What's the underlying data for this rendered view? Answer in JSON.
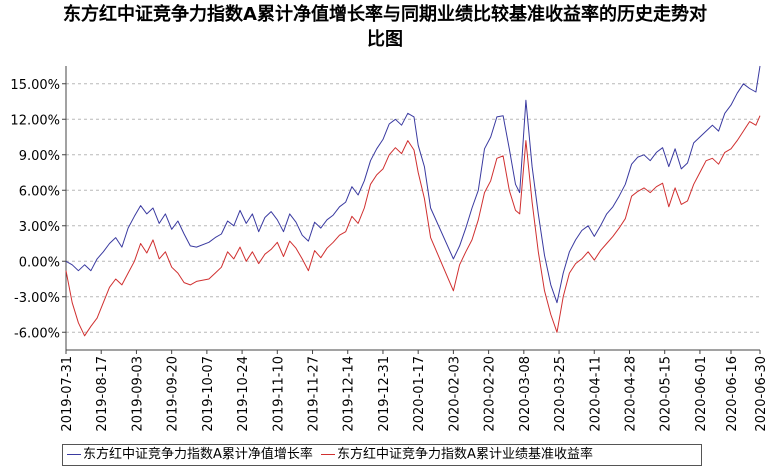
{
  "chart_data": {
    "type": "line",
    "title_line1": "东方红中证竞争力指数A累计净值增长率与同期业绩比较基准收益率的历史走势对",
    "title_line2": "比图",
    "ylim": [
      -7.5,
      16.5
    ],
    "yticks": [
      15,
      12,
      9,
      6,
      3,
      0,
      -3,
      -6
    ],
    "ytick_labels": [
      "15.00%",
      "12.00%",
      "9.00%",
      "6.00%",
      "3.00%",
      "0.00%",
      "-3.00%",
      "-6.00%"
    ],
    "grid": true,
    "legend_position": "bottom",
    "xlim": [
      "2019-07-31",
      "2020-06-30"
    ],
    "x_tick_labels": [
      "2019-07-31",
      "2019-08-17",
      "2019-09-03",
      "2019-09-20",
      "2019-10-07",
      "2019-10-24",
      "2019-11-10",
      "2019-11-27",
      "2019-12-14",
      "2019-12-31",
      "2020-01-17",
      "2020-02-03",
      "2020-02-20",
      "2020-03-08",
      "2020-03-25",
      "2020-04-11",
      "2020-04-28",
      "2020-05-15",
      "2020-06-01",
      "2020-06-16",
      "2020-06-30"
    ],
    "series": [
      {
        "name": "东方红中证竞争力指数A累计净值增长率",
        "color": "#3a3aa0",
        "x": [
          "2019-07-31",
          "2019-08-03",
          "2019-08-06",
          "2019-08-09",
          "2019-08-12",
          "2019-08-15",
          "2019-08-18",
          "2019-08-21",
          "2019-08-24",
          "2019-08-27",
          "2019-08-30",
          "2019-09-02",
          "2019-09-05",
          "2019-09-08",
          "2019-09-11",
          "2019-09-14",
          "2019-09-17",
          "2019-09-20",
          "2019-09-23",
          "2019-09-26",
          "2019-09-29",
          "2019-10-02",
          "2019-10-08",
          "2019-10-11",
          "2019-10-14",
          "2019-10-17",
          "2019-10-20",
          "2019-10-23",
          "2019-10-26",
          "2019-10-29",
          "2019-11-01",
          "2019-11-04",
          "2019-11-07",
          "2019-11-10",
          "2019-11-13",
          "2019-11-16",
          "2019-11-19",
          "2019-11-22",
          "2019-11-25",
          "2019-11-28",
          "2019-12-01",
          "2019-12-04",
          "2019-12-07",
          "2019-12-10",
          "2019-12-13",
          "2019-12-16",
          "2019-12-19",
          "2019-12-22",
          "2019-12-25",
          "2019-12-28",
          "2019-12-31",
          "2020-01-03",
          "2020-01-06",
          "2020-01-09",
          "2020-01-12",
          "2020-01-15",
          "2020-01-17",
          "2020-01-20",
          "2020-01-23",
          "2020-02-03",
          "2020-02-06",
          "2020-02-09",
          "2020-02-12",
          "2020-02-15",
          "2020-02-18",
          "2020-02-21",
          "2020-02-24",
          "2020-02-27",
          "2020-03-01",
          "2020-03-04",
          "2020-03-06",
          "2020-03-09",
          "2020-03-12",
          "2020-03-15",
          "2020-03-18",
          "2020-03-21",
          "2020-03-24",
          "2020-03-27",
          "2020-03-30",
          "2020-04-02",
          "2020-04-05",
          "2020-04-08",
          "2020-04-11",
          "2020-04-14",
          "2020-04-17",
          "2020-04-20",
          "2020-04-23",
          "2020-04-26",
          "2020-04-29",
          "2020-05-02",
          "2020-05-05",
          "2020-05-08",
          "2020-05-11",
          "2020-05-14",
          "2020-05-17",
          "2020-05-20",
          "2020-05-23",
          "2020-05-26",
          "2020-05-29",
          "2020-06-01",
          "2020-06-04",
          "2020-06-07",
          "2020-06-10",
          "2020-06-13",
          "2020-06-16",
          "2020-06-19",
          "2020-06-22",
          "2020-06-25",
          "2020-06-28",
          "2020-06-30"
        ],
        "y": [
          0.0,
          -0.3,
          -0.8,
          -0.3,
          -0.8,
          0.2,
          0.8,
          1.5,
          2.0,
          1.2,
          2.8,
          3.8,
          4.7,
          4.0,
          4.5,
          3.2,
          4.0,
          2.7,
          3.4,
          2.3,
          1.3,
          1.2,
          1.6,
          2.0,
          2.3,
          3.4,
          3.0,
          4.3,
          3.2,
          4.0,
          2.5,
          3.7,
          4.2,
          3.5,
          2.5,
          4.0,
          3.3,
          2.2,
          1.7,
          3.3,
          2.8,
          3.5,
          3.9,
          4.6,
          5.0,
          6.3,
          5.6,
          6.8,
          8.5,
          9.5,
          10.3,
          11.6,
          12.0,
          11.5,
          12.5,
          12.2,
          9.8,
          8.0,
          4.5,
          0.2,
          1.3,
          2.8,
          4.5,
          6.0,
          9.5,
          10.5,
          12.2,
          12.3,
          9.5,
          6.5,
          5.8,
          13.6,
          8.0,
          4.0,
          0.5,
          -2.0,
          -3.5,
          -1.0,
          0.8,
          1.8,
          2.6,
          3.0,
          2.1,
          3.0,
          4.0,
          4.6,
          5.5,
          6.5,
          8.2,
          8.8,
          9.0,
          8.5,
          9.2,
          9.6,
          8.0,
          9.5,
          7.8,
          8.3,
          10.0,
          10.5,
          11.0,
          11.5,
          11.0,
          12.5,
          13.2,
          14.2,
          15.0,
          14.6,
          14.3,
          16.5
        ]
      },
      {
        "name": "东方红中证竞争力指数A累计业绩基准收益率",
        "color": "#d03030",
        "x": [
          "2019-07-31",
          "2019-08-03",
          "2019-08-06",
          "2019-08-09",
          "2019-08-12",
          "2019-08-15",
          "2019-08-18",
          "2019-08-21",
          "2019-08-24",
          "2019-08-27",
          "2019-08-30",
          "2019-09-02",
          "2019-09-05",
          "2019-09-08",
          "2019-09-11",
          "2019-09-14",
          "2019-09-17",
          "2019-09-20",
          "2019-09-23",
          "2019-09-26",
          "2019-09-29",
          "2019-10-02",
          "2019-10-08",
          "2019-10-11",
          "2019-10-14",
          "2019-10-17",
          "2019-10-20",
          "2019-10-23",
          "2019-10-26",
          "2019-10-29",
          "2019-11-01",
          "2019-11-04",
          "2019-11-07",
          "2019-11-10",
          "2019-11-13",
          "2019-11-16",
          "2019-11-19",
          "2019-11-22",
          "2019-11-25",
          "2019-11-28",
          "2019-12-01",
          "2019-12-04",
          "2019-12-07",
          "2019-12-10",
          "2019-12-13",
          "2019-12-16",
          "2019-12-19",
          "2019-12-22",
          "2019-12-25",
          "2019-12-28",
          "2019-12-31",
          "2020-01-03",
          "2020-01-06",
          "2020-01-09",
          "2020-01-12",
          "2020-01-15",
          "2020-01-17",
          "2020-01-20",
          "2020-01-23",
          "2020-02-03",
          "2020-02-06",
          "2020-02-09",
          "2020-02-12",
          "2020-02-15",
          "2020-02-18",
          "2020-02-21",
          "2020-02-24",
          "2020-02-27",
          "2020-03-01",
          "2020-03-04",
          "2020-03-06",
          "2020-03-09",
          "2020-03-12",
          "2020-03-15",
          "2020-03-18",
          "2020-03-21",
          "2020-03-24",
          "2020-03-27",
          "2020-03-30",
          "2020-04-02",
          "2020-04-05",
          "2020-04-08",
          "2020-04-11",
          "2020-04-14",
          "2020-04-17",
          "2020-04-20",
          "2020-04-23",
          "2020-04-26",
          "2020-04-29",
          "2020-05-02",
          "2020-05-05",
          "2020-05-08",
          "2020-05-11",
          "2020-05-14",
          "2020-05-17",
          "2020-05-20",
          "2020-05-23",
          "2020-05-26",
          "2020-05-29",
          "2020-06-01",
          "2020-06-04",
          "2020-06-07",
          "2020-06-10",
          "2020-06-13",
          "2020-06-16",
          "2020-06-19",
          "2020-06-22",
          "2020-06-25",
          "2020-06-28",
          "2020-06-30"
        ],
        "y": [
          -0.8,
          -3.5,
          -5.2,
          -6.3,
          -5.5,
          -4.8,
          -3.5,
          -2.2,
          -1.5,
          -2.0,
          -1.0,
          0.0,
          1.5,
          0.7,
          1.8,
          0.2,
          0.8,
          -0.5,
          -1.0,
          -1.8,
          -2.0,
          -1.7,
          -1.5,
          -1.0,
          -0.5,
          0.8,
          0.2,
          1.2,
          0.0,
          0.8,
          -0.2,
          0.6,
          1.0,
          1.6,
          0.4,
          1.7,
          1.1,
          0.2,
          -0.8,
          0.9,
          0.3,
          1.1,
          1.6,
          2.2,
          2.5,
          3.8,
          3.2,
          4.5,
          6.5,
          7.3,
          7.8,
          9.0,
          9.6,
          9.1,
          10.2,
          9.4,
          7.5,
          5.3,
          2.0,
          -2.5,
          -0.3,
          0.8,
          1.8,
          3.5,
          5.8,
          6.8,
          8.7,
          8.9,
          6.0,
          4.3,
          4.0,
          10.2,
          5.0,
          0.8,
          -2.5,
          -4.5,
          -6.0,
          -3.0,
          -1.0,
          -0.2,
          0.2,
          0.8,
          0.1,
          0.9,
          1.5,
          2.1,
          2.8,
          3.6,
          5.5,
          5.9,
          6.2,
          5.8,
          6.3,
          6.6,
          4.6,
          6.2,
          4.8,
          5.1,
          6.5,
          7.5,
          8.5,
          8.7,
          8.2,
          9.2,
          9.5,
          10.2,
          11.0,
          11.8,
          11.5,
          12.3
        ]
      }
    ]
  }
}
